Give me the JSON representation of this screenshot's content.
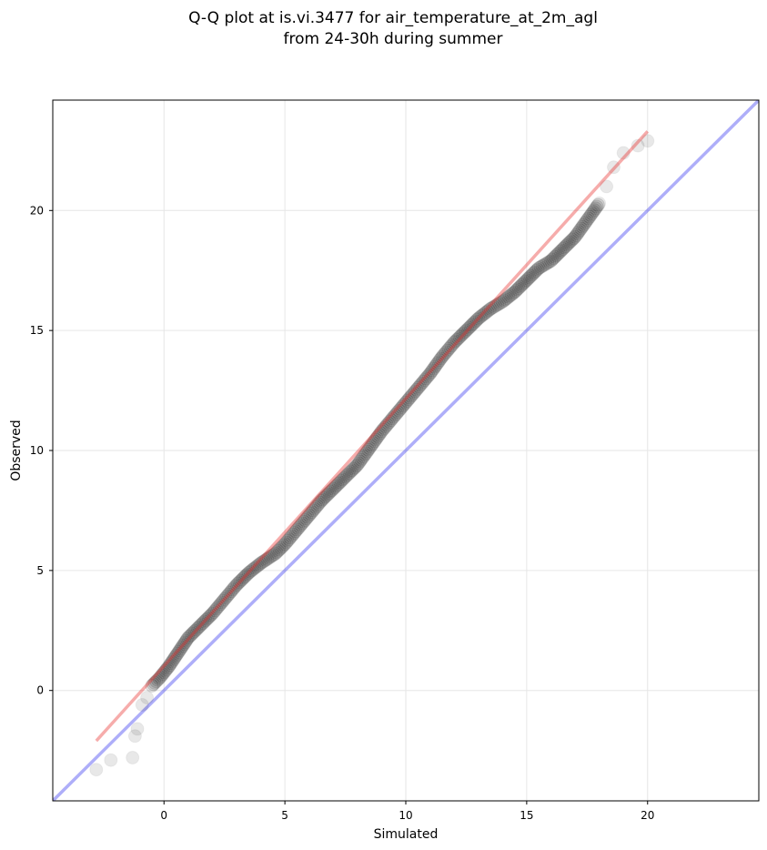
{
  "chart_data": {
    "type": "scatter",
    "title": [
      "Q-Q plot at is.vi.3477 for air_temperature_at_2m_agl",
      "from 24-30h during summer"
    ],
    "xlabel": "Simulated",
    "ylabel": "Observed",
    "xlim": [
      -4.6,
      24.6
    ],
    "ylim": [
      -4.6,
      24.6
    ],
    "xticks": [
      0,
      5,
      10,
      15,
      20
    ],
    "yticks": [
      0,
      5,
      10,
      15,
      20
    ],
    "grid": true,
    "colors": {
      "points": "#000000",
      "fit_line": "#e8302c",
      "identity_line": "#2a2af0"
    },
    "fit_line": {
      "x": [
        -2.8,
        20.0
      ],
      "y": [
        -2.1,
        23.3
      ]
    },
    "identity_line": {
      "x": [
        -4.6,
        24.6
      ],
      "y": [
        -4.6,
        24.6
      ]
    },
    "quantile_path": [
      [
        -2.8,
        -3.3
      ],
      [
        -2.2,
        -2.9
      ],
      [
        -1.3,
        -2.8
      ],
      [
        -1.2,
        -1.9
      ],
      [
        -1.1,
        -1.6
      ],
      [
        -0.9,
        -0.6
      ],
      [
        -0.7,
        -0.3
      ],
      [
        -0.5,
        0.2
      ],
      [
        -0.2,
        0.5
      ],
      [
        0.2,
        1.0
      ],
      [
        0.6,
        1.6
      ],
      [
        1.0,
        2.2
      ],
      [
        1.5,
        2.7
      ],
      [
        2.0,
        3.2
      ],
      [
        2.5,
        3.8
      ],
      [
        3.0,
        4.4
      ],
      [
        3.5,
        4.9
      ],
      [
        4.0,
        5.3
      ],
      [
        4.6,
        5.7
      ],
      [
        5.0,
        6.1
      ],
      [
        5.5,
        6.7
      ],
      [
        6.0,
        7.3
      ],
      [
        6.5,
        7.9
      ],
      [
        7.0,
        8.4
      ],
      [
        7.5,
        8.9
      ],
      [
        8.0,
        9.4
      ],
      [
        8.5,
        10.1
      ],
      [
        9.0,
        10.8
      ],
      [
        9.5,
        11.4
      ],
      [
        10.0,
        12.0
      ],
      [
        10.5,
        12.6
      ],
      [
        11.0,
        13.2
      ],
      [
        11.5,
        13.9
      ],
      [
        12.0,
        14.5
      ],
      [
        12.5,
        15.0
      ],
      [
        13.0,
        15.5
      ],
      [
        13.5,
        15.9
      ],
      [
        14.0,
        16.2
      ],
      [
        14.5,
        16.6
      ],
      [
        15.0,
        17.1
      ],
      [
        15.5,
        17.6
      ],
      [
        16.0,
        17.9
      ],
      [
        16.5,
        18.4
      ],
      [
        17.0,
        18.9
      ],
      [
        17.5,
        19.6
      ],
      [
        18.0,
        20.3
      ],
      [
        18.3,
        21.0
      ],
      [
        18.6,
        21.8
      ],
      [
        19.0,
        22.4
      ],
      [
        19.6,
        22.7
      ],
      [
        20.0,
        22.9
      ]
    ]
  }
}
